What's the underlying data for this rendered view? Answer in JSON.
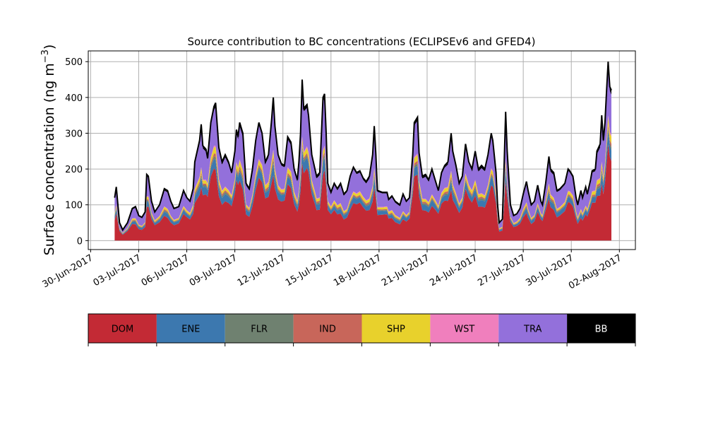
{
  "chart_data": {
    "type": "area",
    "title": "Source contribution to BC concentrations (ECLIPSEv6 and GFED4)",
    "ylabel_main": "Surface concentration (ng m",
    "ylabel_sup": "−3",
    "ylabel_close": ")",
    "xlabel": "",
    "stacked": true,
    "grid": true,
    "ylim": [
      -25,
      530
    ],
    "yticks": [
      0,
      100,
      200,
      300,
      400,
      500
    ],
    "x_ticks": [
      "30-Jun-2017",
      "03-Jul-2017",
      "06-Jul-2017",
      "09-Jul-2017",
      "12-Jul-2017",
      "15-Jul-2017",
      "18-Jul-2017",
      "21-Jul-2017",
      "24-Jul-2017",
      "27-Jul-2017",
      "30-Jul-2017",
      "02-Aug-2017"
    ],
    "x_anchor_date": "30-Jun-2017",
    "x_range_days": [
      -0.15,
      34.0
    ],
    "total_points": [
      [
        1.5,
        120
      ],
      [
        1.6,
        150
      ],
      [
        1.8,
        50
      ],
      [
        2.0,
        30
      ],
      [
        2.3,
        50
      ],
      [
        2.6,
        90
      ],
      [
        2.8,
        95
      ],
      [
        3.0,
        70
      ],
      [
        3.2,
        65
      ],
      [
        3.4,
        80
      ],
      [
        3.5,
        185
      ],
      [
        3.6,
        180
      ],
      [
        3.8,
        110
      ],
      [
        4.0,
        80
      ],
      [
        4.3,
        100
      ],
      [
        4.6,
        145
      ],
      [
        4.8,
        140
      ],
      [
        5.0,
        110
      ],
      [
        5.2,
        90
      ],
      [
        5.5,
        95
      ],
      [
        5.8,
        140
      ],
      [
        6.0,
        120
      ],
      [
        6.2,
        110
      ],
      [
        6.4,
        145
      ],
      [
        6.5,
        220
      ],
      [
        6.8,
        280
      ],
      [
        6.9,
        325
      ],
      [
        7.0,
        265
      ],
      [
        7.2,
        255
      ],
      [
        7.3,
        230
      ],
      [
        7.5,
        330
      ],
      [
        7.7,
        375
      ],
      [
        7.8,
        385
      ],
      [
        8.0,
        260
      ],
      [
        8.2,
        220
      ],
      [
        8.4,
        240
      ],
      [
        8.6,
        220
      ],
      [
        8.8,
        190
      ],
      [
        9.0,
        250
      ],
      [
        9.1,
        310
      ],
      [
        9.2,
        290
      ],
      [
        9.3,
        330
      ],
      [
        9.5,
        300
      ],
      [
        9.7,
        160
      ],
      [
        9.9,
        145
      ],
      [
        10.1,
        200
      ],
      [
        10.3,
        280
      ],
      [
        10.5,
        330
      ],
      [
        10.7,
        300
      ],
      [
        10.9,
        220
      ],
      [
        11.1,
        240
      ],
      [
        11.3,
        340
      ],
      [
        11.4,
        400
      ],
      [
        11.5,
        320
      ],
      [
        11.7,
        240
      ],
      [
        11.9,
        215
      ],
      [
        12.1,
        210
      ],
      [
        12.3,
        290
      ],
      [
        12.5,
        275
      ],
      [
        12.7,
        200
      ],
      [
        12.9,
        170
      ],
      [
        13.0,
        220
      ],
      [
        13.1,
        300
      ],
      [
        13.2,
        450
      ],
      [
        13.3,
        370
      ],
      [
        13.5,
        380
      ],
      [
        13.6,
        350
      ],
      [
        13.8,
        240
      ],
      [
        14.0,
        200
      ],
      [
        14.1,
        180
      ],
      [
        14.3,
        190
      ],
      [
        14.5,
        400
      ],
      [
        14.6,
        410
      ],
      [
        14.7,
        300
      ],
      [
        14.8,
        160
      ],
      [
        15.0,
        135
      ],
      [
        15.2,
        160
      ],
      [
        15.4,
        145
      ],
      [
        15.6,
        160
      ],
      [
        15.8,
        130
      ],
      [
        16.0,
        140
      ],
      [
        16.2,
        180
      ],
      [
        16.4,
        205
      ],
      [
        16.6,
        190
      ],
      [
        16.8,
        195
      ],
      [
        17.0,
        175
      ],
      [
        17.2,
        165
      ],
      [
        17.4,
        180
      ],
      [
        17.6,
        240
      ],
      [
        17.7,
        320
      ],
      [
        17.8,
        240
      ],
      [
        17.9,
        140
      ],
      [
        18.2,
        135
      ],
      [
        18.5,
        135
      ],
      [
        18.6,
        115
      ],
      [
        18.8,
        125
      ],
      [
        19.0,
        110
      ],
      [
        19.3,
        100
      ],
      [
        19.5,
        130
      ],
      [
        19.7,
        110
      ],
      [
        19.9,
        120
      ],
      [
        20.1,
        240
      ],
      [
        20.2,
        330
      ],
      [
        20.4,
        345
      ],
      [
        20.5,
        245
      ],
      [
        20.7,
        180
      ],
      [
        20.9,
        185
      ],
      [
        21.1,
        170
      ],
      [
        21.3,
        200
      ],
      [
        21.5,
        170
      ],
      [
        21.7,
        140
      ],
      [
        21.9,
        190
      ],
      [
        22.1,
        210
      ],
      [
        22.3,
        220
      ],
      [
        22.5,
        300
      ],
      [
        22.6,
        250
      ],
      [
        22.8,
        210
      ],
      [
        23.0,
        160
      ],
      [
        23.2,
        180
      ],
      [
        23.4,
        270
      ],
      [
        23.6,
        220
      ],
      [
        23.8,
        200
      ],
      [
        24.0,
        250
      ],
      [
        24.2,
        200
      ],
      [
        24.4,
        210
      ],
      [
        24.6,
        200
      ],
      [
        24.8,
        240
      ],
      [
        25.0,
        300
      ],
      [
        25.1,
        280
      ],
      [
        25.3,
        190
      ],
      [
        25.4,
        100
      ],
      [
        25.5,
        50
      ],
      [
        25.7,
        60
      ],
      [
        25.8,
        200
      ],
      [
        25.9,
        360
      ],
      [
        26.0,
        250
      ],
      [
        26.2,
        100
      ],
      [
        26.4,
        70
      ],
      [
        26.6,
        75
      ],
      [
        26.8,
        90
      ],
      [
        27.0,
        130
      ],
      [
        27.2,
        165
      ],
      [
        27.3,
        140
      ],
      [
        27.5,
        100
      ],
      [
        27.7,
        110
      ],
      [
        27.9,
        155
      ],
      [
        28.1,
        110
      ],
      [
        28.2,
        100
      ],
      [
        28.4,
        160
      ],
      [
        28.6,
        235
      ],
      [
        28.7,
        200
      ],
      [
        28.9,
        190
      ],
      [
        29.1,
        140
      ],
      [
        29.3,
        145
      ],
      [
        29.6,
        160
      ],
      [
        29.8,
        200
      ],
      [
        29.9,
        195
      ],
      [
        30.1,
        180
      ],
      [
        30.3,
        120
      ],
      [
        30.4,
        100
      ],
      [
        30.6,
        140
      ],
      [
        30.7,
        120
      ],
      [
        30.9,
        150
      ],
      [
        31.0,
        130
      ],
      [
        31.2,
        170
      ],
      [
        31.3,
        195
      ],
      [
        31.5,
        200
      ],
      [
        31.6,
        250
      ],
      [
        31.8,
        270
      ],
      [
        31.9,
        350
      ],
      [
        32.0,
        280
      ],
      [
        32.1,
        330
      ],
      [
        32.2,
        420
      ],
      [
        32.3,
        500
      ],
      [
        32.4,
        430
      ],
      [
        32.5,
        420
      ]
    ],
    "fractions": [
      0.5,
      0.08,
      0.02,
      0.02,
      0.04,
      0.01,
      0.3,
      0.03
    ],
    "series": [
      {
        "name": "DOM",
        "color": "#c32a35",
        "label_color": "#000000"
      },
      {
        "name": "ENE",
        "color": "#3c78af",
        "label_color": "#000000"
      },
      {
        "name": "FLR",
        "color": "#6f8170",
        "label_color": "#000000"
      },
      {
        "name": "IND",
        "color": "#c8665a",
        "label_color": "#000000"
      },
      {
        "name": "SHP",
        "color": "#e8d12c",
        "label_color": "#000000"
      },
      {
        "name": "WST",
        "color": "#f07fbd",
        "label_color": "#000000"
      },
      {
        "name": "TRA",
        "color": "#9370db",
        "label_color": "#000000"
      },
      {
        "name": "BB",
        "color": "#000000",
        "label_color": "#ffffff"
      }
    ],
    "legend_placement": "bottom colorbar"
  }
}
